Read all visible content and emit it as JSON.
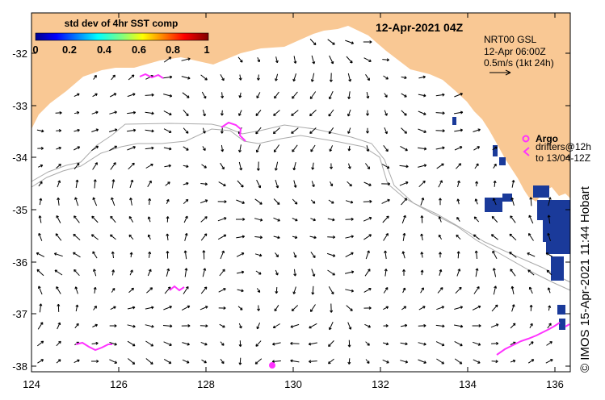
{
  "timestamp": "12-Apr-2021 04Z",
  "colorbar": {
    "title": "std dev of 4hr SST comp",
    "ticks": [
      "0",
      "0.2",
      "0.4",
      "0.6",
      "0.8",
      "1"
    ]
  },
  "legend": {
    "product": "NRT00 GSL",
    "product_time": "12-Apr 06:00Z",
    "scale": "0.5m/s (1kt 24h)",
    "argo_label": "Argo",
    "drifters_line1": "drifters@12h",
    "drifters_line2": "to 13/04-12Z"
  },
  "credit": "© IMOS 15-Apr-2021 11:44 Hobart",
  "axes": {
    "lon_ticks": [
      "124",
      "126",
      "128",
      "130",
      "132",
      "134",
      "136"
    ],
    "lat_ticks": [
      "-32",
      "-33",
      "-34",
      "-35",
      "-36",
      "-37",
      "-38"
    ]
  },
  "colors": {
    "land": "#f9c894",
    "argo": "#ff33ff",
    "bathymetry": "#aaaaaa",
    "sst_patch": "#1a3a9a"
  }
}
